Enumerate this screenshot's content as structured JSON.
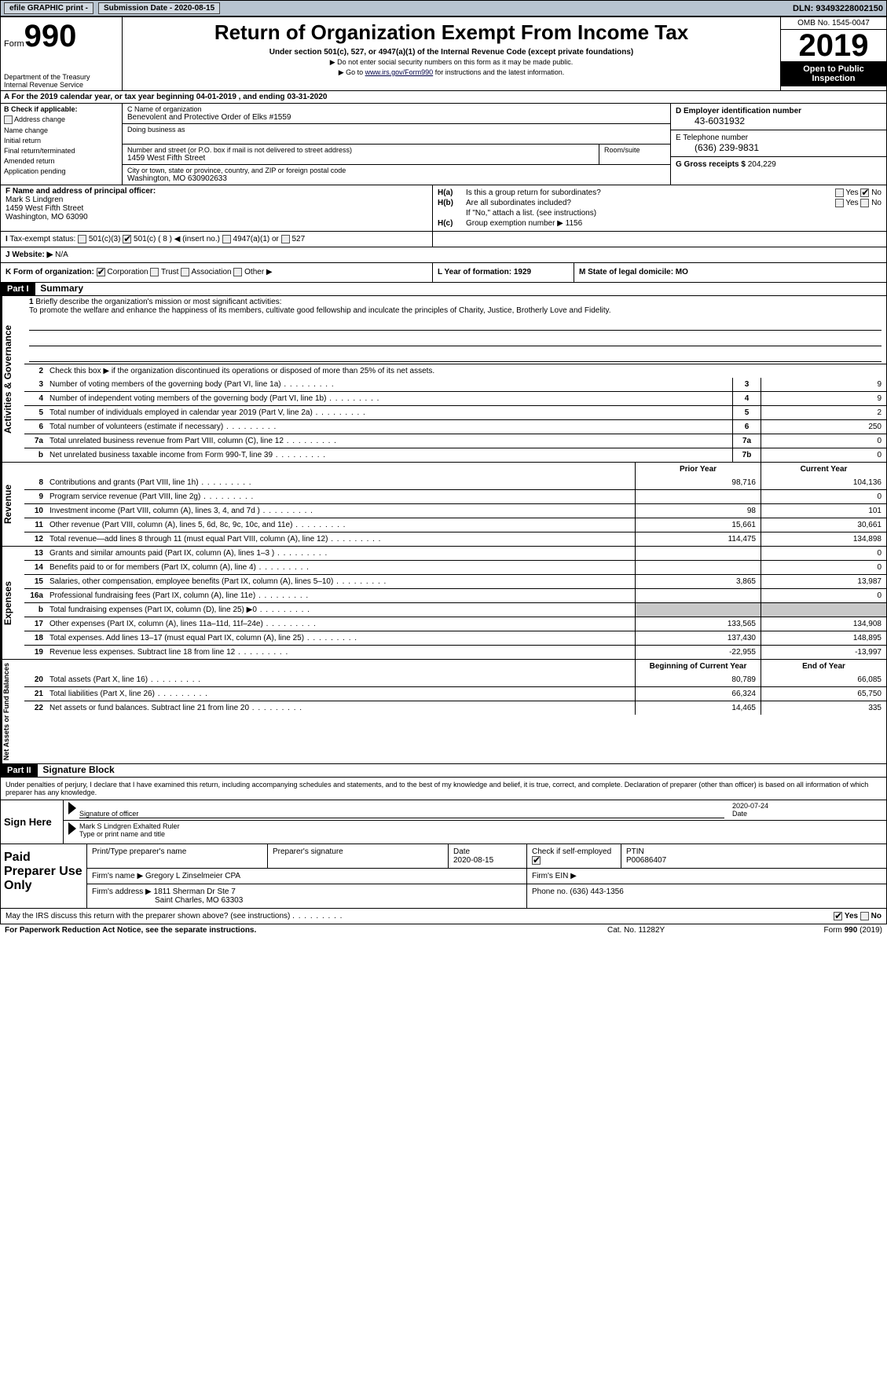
{
  "topbar": {
    "efile": "efile GRAPHIC print -",
    "submission_label": "Submission Date - 2020-08-15",
    "dln": "DLN: 93493228002150"
  },
  "header": {
    "form_prefix": "Form",
    "form_num": "990",
    "dept1": "Department of the Treasury",
    "dept2": "Internal Revenue Service",
    "title": "Return of Organization Exempt From Income Tax",
    "sub1": "Under section 501(c), 527, or 4947(a)(1) of the Internal Revenue Code (except private foundations)",
    "sub2": "▶ Do not enter social security numbers on this form as it may be made public.",
    "sub3_pre": "▶ Go to ",
    "sub3_link": "www.irs.gov/Form990",
    "sub3_post": " for instructions and the latest information.",
    "omb": "OMB No. 1545-0047",
    "year": "2019",
    "open": "Open to Public Inspection"
  },
  "row_a": "A  For the 2019 calendar year, or tax year beginning 04-01-2019       , and ending 03-31-2020",
  "col_b": {
    "title": "B Check if applicable:",
    "items": [
      "Address change",
      "Name change",
      "Initial return",
      "Final return/terminated",
      "Amended return",
      "Application pending"
    ]
  },
  "col_c": {
    "name_lbl": "C Name of organization",
    "name": "Benevolent and Protective Order of Elks #1559",
    "dba_lbl": "Doing business as",
    "addr_lbl": "Number and street (or P.O. box if mail is not delivered to street address)",
    "room_lbl": "Room/suite",
    "addr": "1459 West Fifth Street",
    "city_lbl": "City or town, state or province, country, and ZIP or foreign postal code",
    "city": "Washington, MO  630902633"
  },
  "col_d": {
    "ein_lbl": "D Employer identification number",
    "ein": "43-6031932",
    "phone_lbl": "E Telephone number",
    "phone": "(636) 239-9831",
    "gross_lbl": "G Gross receipts $",
    "gross": "204,229"
  },
  "col_f": {
    "lbl": "F Name and address of principal officer:",
    "name": "Mark S Lindgren",
    "addr1": "1459 West Fifth Street",
    "addr2": "Washington, MO  63090",
    "i_lbl": "Tax-exempt status:",
    "i_opts": [
      "501(c)(3)",
      "501(c) ( 8 ) ◀ (insert no.)",
      "4947(a)(1) or",
      "527"
    ],
    "j_lbl": "J   Website: ▶",
    "j_val": "N/A"
  },
  "col_h": {
    "ha": "H(a)",
    "ha_txt": "Is this a group return for subordinates?",
    "hb": "H(b)",
    "hb_txt": "Are all subordinates included?",
    "hb_note": "If \"No,\" attach a list. (see instructions)",
    "hc": "H(c)",
    "hc_txt": "Group exemption number ▶",
    "hc_val": "1156",
    "yes": "Yes",
    "no": "No"
  },
  "row_k": {
    "k_lbl": "K Form of organization:",
    "opts": [
      "Corporation",
      "Trust",
      "Association",
      "Other ▶"
    ],
    "l": "L Year of formation: 1929",
    "m": "M State of legal domicile: MO"
  },
  "part1": {
    "hdr": "Part I",
    "title": "Summary",
    "q1_lbl": "1",
    "q1": "Briefly describe the organization's mission or most significant activities:",
    "q1_txt": "To promote the welfare and enhance the happiness of its members, cultivate good fellowship and inculcate the principles of Charity, Justice, Brotherly Love and Fidelity.",
    "q2": "Check this box ▶        if the organization discontinued its operations or disposed of more than 25% of its net assets.",
    "side1": "Activities & Governance",
    "rows_ag": [
      {
        "n": "3",
        "d": "Number of voting members of the governing body (Part VI, line 1a)",
        "box": "3",
        "v": "9"
      },
      {
        "n": "4",
        "d": "Number of independent voting members of the governing body (Part VI, line 1b)",
        "box": "4",
        "v": "9"
      },
      {
        "n": "5",
        "d": "Total number of individuals employed in calendar year 2019 (Part V, line 2a)",
        "box": "5",
        "v": "2"
      },
      {
        "n": "6",
        "d": "Total number of volunteers (estimate if necessary)",
        "box": "6",
        "v": "250"
      },
      {
        "n": "7a",
        "d": "Total unrelated business revenue from Part VIII, column (C), line 12",
        "box": "7a",
        "v": "0"
      },
      {
        "n": "b",
        "d": "Net unrelated business taxable income from Form 990-T, line 39",
        "box": "7b",
        "v": "0"
      }
    ],
    "prior": "Prior Year",
    "current": "Current Year",
    "side2": "Revenue",
    "rows_rev": [
      {
        "n": "8",
        "d": "Contributions and grants (Part VIII, line 1h)",
        "p": "98,716",
        "c": "104,136"
      },
      {
        "n": "9",
        "d": "Program service revenue (Part VIII, line 2g)",
        "p": "",
        "c": "0"
      },
      {
        "n": "10",
        "d": "Investment income (Part VIII, column (A), lines 3, 4, and 7d )",
        "p": "98",
        "c": "101"
      },
      {
        "n": "11",
        "d": "Other revenue (Part VIII, column (A), lines 5, 6d, 8c, 9c, 10c, and 11e)",
        "p": "15,661",
        "c": "30,661"
      },
      {
        "n": "12",
        "d": "Total revenue—add lines 8 through 11 (must equal Part VIII, column (A), line 12)",
        "p": "114,475",
        "c": "134,898"
      }
    ],
    "side3": "Expenses",
    "rows_exp": [
      {
        "n": "13",
        "d": "Grants and similar amounts paid (Part IX, column (A), lines 1–3 )",
        "p": "",
        "c": "0"
      },
      {
        "n": "14",
        "d": "Benefits paid to or for members (Part IX, column (A), line 4)",
        "p": "",
        "c": "0"
      },
      {
        "n": "15",
        "d": "Salaries, other compensation, employee benefits (Part IX, column (A), lines 5–10)",
        "p": "3,865",
        "c": "13,987"
      },
      {
        "n": "16a",
        "d": "Professional fundraising fees (Part IX, column (A), line 11e)",
        "p": "",
        "c": "0"
      },
      {
        "n": "b",
        "d": "Total fundraising expenses (Part IX, column (D), line 25) ▶0",
        "p": "shade",
        "c": "shade"
      },
      {
        "n": "17",
        "d": "Other expenses (Part IX, column (A), lines 11a–11d, 11f–24e)",
        "p": "133,565",
        "c": "134,908"
      },
      {
        "n": "18",
        "d": "Total expenses. Add lines 13–17 (must equal Part IX, column (A), line 25)",
        "p": "137,430",
        "c": "148,895"
      },
      {
        "n": "19",
        "d": "Revenue less expenses. Subtract line 18 from line 12",
        "p": "-22,955",
        "c": "-13,997"
      }
    ],
    "boy": "Beginning of Current Year",
    "eoy": "End of Year",
    "side4": "Net Assets or Fund Balances",
    "rows_na": [
      {
        "n": "20",
        "d": "Total assets (Part X, line 16)",
        "p": "80,789",
        "c": "66,085"
      },
      {
        "n": "21",
        "d": "Total liabilities (Part X, line 26)",
        "p": "66,324",
        "c": "65,750"
      },
      {
        "n": "22",
        "d": "Net assets or fund balances. Subtract line 21 from line 20",
        "p": "14,465",
        "c": "335"
      }
    ]
  },
  "part2": {
    "hdr": "Part II",
    "title": "Signature Block",
    "penalty": "Under penalties of perjury, I declare that I have examined this return, including accompanying schedules and statements, and to the best of my knowledge and belief, it is true, correct, and complete. Declaration of preparer (other than officer) is based on all information of which preparer has any knowledge."
  },
  "sign": {
    "lbl": "Sign Here",
    "sig_lbl": "Signature of officer",
    "date": "2020-07-24",
    "date_lbl": "Date",
    "name": "Mark S Lindgren  Exhalted Ruler",
    "name_lbl": "Type or print name and title"
  },
  "paid": {
    "lbl": "Paid Preparer Use Only",
    "r1": {
      "c1": "Print/Type preparer's name",
      "c2": "Preparer's signature",
      "c3_lbl": "Date",
      "c3": "2020-08-15",
      "c4": "Check       if self-employed",
      "c5_lbl": "PTIN",
      "c5": "P00686407"
    },
    "r2": {
      "c1": "Firm's name    ▶",
      "c1v": "Gregory L Zinselmeier CPA",
      "c2": "Firm's EIN ▶"
    },
    "r3": {
      "c1": "Firm's address ▶",
      "c1v": "1811 Sherman Dr Ste 7",
      "c1v2": "Saint Charles, MO  63303",
      "c2": "Phone no. (636) 443-1356"
    }
  },
  "footer": {
    "q": "May the IRS discuss this return with the preparer shown above? (see instructions)",
    "yes": "Yes",
    "no": "No",
    "paperwork": "For Paperwork Reduction Act Notice, see the separate instructions.",
    "cat": "Cat. No. 11282Y",
    "form": "Form 990 (2019)"
  },
  "colors": {
    "header_bg": "#b8c4d0",
    "black": "#000000",
    "shade": "#c8c8c8",
    "link": "#000088"
  }
}
